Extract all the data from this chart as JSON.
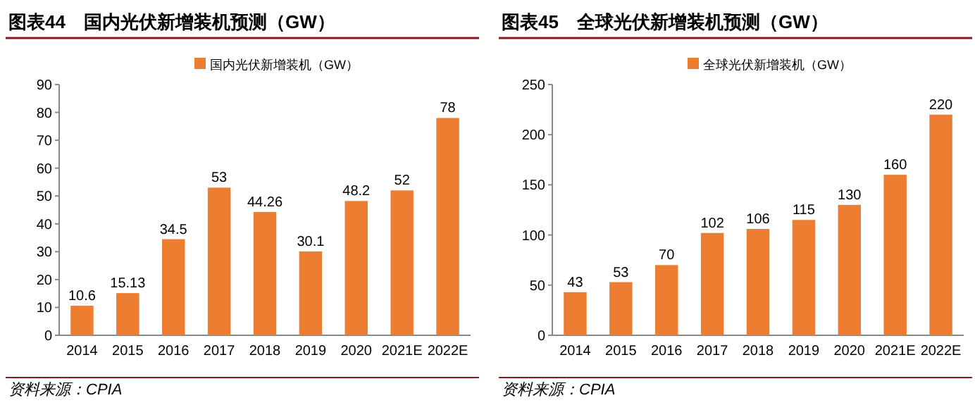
{
  "chart_data": [
    {
      "type": "bar",
      "title": "图表44　国内光伏新增装机预测（GW）",
      "categories": [
        "2014",
        "2015",
        "2016",
        "2017",
        "2018",
        "2019",
        "2020",
        "2021E",
        "2022E"
      ],
      "series": [
        {
          "name": "国内光伏新增装机（GW）",
          "color": "#ed7d31",
          "values": [
            10.6,
            15.13,
            34.5,
            53,
            44.26,
            30.1,
            48.2,
            52,
            78
          ]
        }
      ],
      "ylim": [
        0,
        90
      ],
      "yticks": [
        0,
        10,
        20,
        30,
        40,
        50,
        60,
        70,
        80,
        90
      ],
      "data_labels": true,
      "legend": "top",
      "grid": false,
      "annotations": [
        "资料来源：CPIA"
      ]
    },
    {
      "type": "bar",
      "title": "图表45　全球光伏新增装机预测（GW）",
      "categories": [
        "2014",
        "2015",
        "2016",
        "2017",
        "2018",
        "2019",
        "2020",
        "2021E",
        "2022E"
      ],
      "series": [
        {
          "name": "全球光伏新增装机（GW）",
          "color": "#ed7d31",
          "values": [
            43,
            53,
            70,
            102,
            106,
            115,
            130,
            160,
            220
          ]
        }
      ],
      "ylim": [
        0,
        250
      ],
      "yticks": [
        0,
        50,
        100,
        150,
        200,
        250
      ],
      "data_labels": true,
      "legend": "top",
      "grid": false,
      "annotations": [
        "资料来源：CPIA"
      ]
    }
  ]
}
